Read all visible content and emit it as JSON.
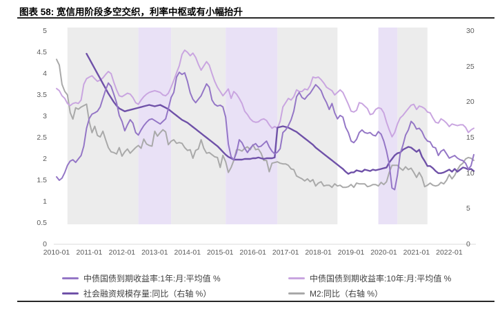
{
  "header": {
    "title": "图表 58: 宽信用阶段多空交织，利率中枢或有小幅抬升"
  },
  "legend": {
    "items": [
      {
        "label": "中债国债到期收益率:1年:月:平均值 %",
        "color": "#9476c6"
      },
      {
        "label": "中债国债到期收益率:10年:月:平均值 %",
        "color": "#c9a5e0"
      },
      {
        "label": "社会融资规模存量:同比（右轴 %）",
        "color": "#6f51a8"
      },
      {
        "label": "M2:同比（右轴 %）",
        "color": "#a9a9a9"
      }
    ]
  },
  "chart_data": {
    "type": "line",
    "title": "图表 58: 宽信用阶段多空交织，利率中枢或有小幅抬升",
    "x_start": "2010-01",
    "x_end": "2022-10",
    "months": 154,
    "grid_color": "#d9d9d9",
    "left_axis": {
      "min": 0,
      "max": 5,
      "ticks": [
        "0",
        "0.5",
        "1",
        "1.5",
        "2",
        "2.5",
        "3",
        "3.5",
        "4",
        "4.5",
        "5"
      ]
    },
    "right_axis": {
      "min": 0,
      "max": 30,
      "ticks": [
        "0",
        "5",
        "10",
        "15",
        "20",
        "25",
        "30"
      ]
    },
    "x_axis": {
      "tick_labels": [
        "2010-01",
        "2011-01",
        "2012-01",
        "2013-01",
        "2014-01",
        "2015-01",
        "2016-01",
        "2017-01",
        "2018-01",
        "2019-01",
        "2020-01",
        "2021-01",
        "2022-01"
      ],
      "tick_month_indices": [
        0,
        12,
        24,
        36,
        48,
        60,
        72,
        84,
        96,
        108,
        120,
        132,
        144
      ]
    },
    "band_colors": {
      "gray": "#ececec",
      "purple": "#e9e1f6"
    },
    "bands": [
      {
        "kind": "gray",
        "from": 4,
        "to": 30
      },
      {
        "kind": "purple",
        "from": 30,
        "to": 42
      },
      {
        "kind": "gray",
        "from": 42,
        "to": 62
      },
      {
        "kind": "purple",
        "from": 62,
        "to": 81
      },
      {
        "kind": "gray",
        "from": 81,
        "to": 103
      },
      {
        "kind": "purple",
        "from": 118,
        "to": 125
      },
      {
        "kind": "gray",
        "from": 125,
        "to": 136
      }
    ],
    "series": [
      {
        "name": "M2:同比（右轴 %）",
        "axis": "right",
        "color": "#a9a9a9",
        "width": 2,
        "values": [
          26.0,
          25.2,
          22.5,
          21.5,
          21.0,
          18.5,
          17.6,
          19.2,
          19.0,
          19.3,
          19.5,
          19.7,
          17.2,
          15.7,
          16.6,
          15.3,
          15.1,
          15.9,
          14.7,
          13.6,
          13.0,
          12.9,
          12.7,
          13.6,
          12.4,
          13.0,
          13.4,
          12.8,
          13.2,
          13.6,
          13.9,
          13.5,
          14.8,
          14.1,
          13.9,
          13.8,
          15.9,
          15.2,
          15.7,
          16.1,
          15.8,
          14.0,
          14.5,
          14.7,
          14.2,
          14.3,
          14.2,
          13.6,
          13.2,
          13.3,
          12.1,
          13.2,
          13.4,
          14.7,
          13.5,
          12.8,
          12.9,
          12.6,
          12.3,
          12.2,
          10.8,
          12.5,
          11.6,
          10.1,
          10.8,
          11.8,
          13.3,
          13.3,
          13.1,
          13.5,
          13.7,
          13.3,
          14.0,
          13.3,
          13.4,
          12.8,
          11.8,
          11.8,
          10.2,
          11.4,
          11.5,
          11.6,
          11.4,
          11.3,
          11.3,
          11.1,
          10.6,
          10.5,
          9.6,
          9.4,
          9.2,
          8.9,
          9.2,
          8.8,
          9.1,
          8.2,
          8.6,
          8.8,
          8.2,
          8.3,
          8.3,
          8.0,
          8.5,
          8.2,
          8.3,
          8.0,
          8.0,
          8.1,
          8.4,
          8.0,
          8.6,
          8.5,
          8.5,
          8.5,
          8.1,
          8.2,
          8.4,
          8.4,
          8.2,
          8.7,
          8.4,
          8.8,
          10.1,
          11.1,
          11.1,
          11.1,
          10.7,
          10.4,
          10.9,
          10.5,
          10.7,
          10.1,
          9.4,
          10.1,
          9.4,
          8.1,
          8.3,
          8.6,
          8.3,
          8.2,
          8.3,
          8.7,
          8.5,
          9.0,
          9.8,
          9.2,
          9.7,
          10.5,
          11.1,
          11.4,
          12.0,
          12.2,
          12.1,
          11.8
        ]
      },
      {
        "name": "中债国债到期收益率:10年:月:平均值 %",
        "axis": "left",
        "color": "#c9a5e0",
        "width": 2,
        "values": [
          3.65,
          3.6,
          3.48,
          3.42,
          3.3,
          3.25,
          3.3,
          3.32,
          3.3,
          3.38,
          3.75,
          3.88,
          3.92,
          3.95,
          3.88,
          3.82,
          3.85,
          3.9,
          3.98,
          4.05,
          4.0,
          3.8,
          3.62,
          3.48,
          3.46,
          3.5,
          3.54,
          3.52,
          3.44,
          3.32,
          3.28,
          3.38,
          3.46,
          3.52,
          3.56,
          3.58,
          3.6,
          3.58,
          3.56,
          3.5,
          3.48,
          3.54,
          3.68,
          3.84,
          4.02,
          4.18,
          4.45,
          4.55,
          4.5,
          4.42,
          4.48,
          4.38,
          4.22,
          4.08,
          4.18,
          4.28,
          4.2,
          4.0,
          3.82,
          3.68,
          3.58,
          3.48,
          3.56,
          3.64,
          3.42,
          3.58,
          3.52,
          3.42,
          3.3,
          3.12,
          3.04,
          2.94,
          2.88,
          2.86,
          2.87,
          2.92,
          2.94,
          2.9,
          2.8,
          2.72,
          2.76,
          2.72,
          2.88,
          3.22,
          3.32,
          3.42,
          3.38,
          3.46,
          3.62,
          3.58,
          3.58,
          3.64,
          3.62,
          3.72,
          3.92,
          3.9,
          3.92,
          3.86,
          3.78,
          3.68,
          3.64,
          3.6,
          3.5,
          3.56,
          3.62,
          3.56,
          3.42,
          3.28,
          3.12,
          3.1,
          3.14,
          3.32,
          3.3,
          3.24,
          3.18,
          3.04,
          3.06,
          3.16,
          3.2,
          3.18,
          3.08,
          2.86,
          2.68,
          2.52,
          2.62,
          2.82,
          2.96,
          3.02,
          3.1,
          3.18,
          3.26,
          3.28,
          3.16,
          3.24,
          3.22,
          3.18,
          3.1,
          3.08,
          2.96,
          2.86,
          2.84,
          2.94,
          2.9,
          2.84,
          2.76,
          2.82,
          2.8,
          2.78,
          2.8,
          2.8,
          2.74,
          2.62,
          2.68,
          2.72
        ]
      },
      {
        "name": "社会融资规模存量:同比（右轴 %）",
        "axis": "right",
        "color": "#6f51a8",
        "width": 2.4,
        "values": [
          null,
          null,
          null,
          null,
          null,
          null,
          null,
          null,
          null,
          null,
          null,
          26.8,
          26.1,
          25.4,
          24.7,
          24.0,
          23.3,
          22.6,
          21.9,
          21.2,
          20.6,
          20.0,
          19.5,
          19.1,
          18.9,
          18.7,
          18.8,
          18.9,
          19.0,
          19.1,
          19.2,
          19.3,
          19.4,
          19.5,
          19.6,
          19.5,
          19.4,
          19.5,
          19.6,
          19.4,
          19.2,
          19.0,
          18.7,
          18.4,
          18.1,
          17.8,
          17.5,
          17.3,
          17.1,
          16.8,
          16.5,
          16.2,
          15.9,
          15.6,
          15.3,
          15.0,
          14.7,
          14.4,
          14.1,
          13.8,
          13.4,
          13.0,
          12.6,
          12.3,
          12.1,
          11.9,
          11.9,
          11.9,
          11.9,
          12.0,
          12.0,
          12.0,
          12.1,
          12.1,
          12.2,
          12.1,
          12.0,
          12.1,
          12.1,
          12.1,
          12.2,
          16.4,
          16.5,
          16.6,
          16.5,
          16.4,
          16.2,
          16.0,
          15.8,
          15.5,
          15.2,
          14.9,
          14.6,
          14.3,
          14.0,
          13.6,
          13.3,
          13.0,
          12.7,
          12.4,
          12.1,
          11.8,
          11.5,
          11.2,
          10.9,
          10.6,
          10.2,
          9.9,
          10.1,
          10.1,
          10.4,
          10.3,
          10.2,
          10.5,
          10.4,
          10.3,
          10.5,
          10.4,
          10.5,
          10.6,
          10.7,
          10.8,
          11.5,
          12.0,
          12.5,
          12.8,
          12.9,
          13.3,
          13.5,
          13.7,
          13.6,
          13.3,
          13.0,
          13.3,
          12.3,
          11.7,
          11.0,
          11.0,
          10.7,
          10.3,
          10.0,
          10.0,
          10.1,
          10.3,
          10.5,
          10.2,
          10.6,
          10.2,
          10.5,
          10.8,
          10.7,
          10.5,
          10.6,
          10.3
        ]
      },
      {
        "name": "中债国债到期收益率:1年:月:平均值 %",
        "axis": "left",
        "color": "#9476c6",
        "width": 2,
        "values": [
          1.58,
          1.5,
          1.55,
          1.68,
          1.85,
          1.95,
          1.98,
          1.92,
          2.0,
          2.08,
          2.3,
          2.72,
          2.95,
          3.05,
          3.08,
          3.12,
          3.22,
          3.42,
          3.62,
          3.78,
          3.7,
          3.52,
          3.32,
          3.02,
          2.88,
          2.66,
          2.8,
          2.92,
          2.84,
          2.62,
          2.56,
          2.68,
          2.78,
          2.86,
          2.92,
          2.94,
          2.9,
          2.86,
          2.82,
          2.88,
          2.94,
          3.18,
          3.44,
          3.56,
          3.92,
          4.03,
          3.98,
          4.02,
          3.82,
          3.55,
          3.4,
          3.32,
          3.4,
          3.48,
          3.62,
          3.76,
          3.68,
          3.38,
          3.28,
          3.24,
          3.26,
          3.22,
          2.98,
          2.35,
          2.05,
          1.98,
          2.15,
          2.45,
          2.38,
          2.25,
          2.15,
          2.25,
          2.32,
          2.36,
          2.28,
          2.3,
          2.36,
          2.42,
          2.28,
          2.18,
          2.12,
          2.16,
          2.24,
          2.62,
          2.68,
          2.78,
          2.92,
          3.12,
          3.46,
          3.56,
          3.44,
          3.4,
          3.48,
          3.54,
          3.64,
          3.74,
          3.68,
          3.6,
          3.44,
          3.32,
          3.16,
          3.3,
          3.08,
          2.94,
          3.02,
          2.98,
          2.74,
          2.62,
          2.42,
          2.38,
          2.46,
          2.62,
          2.68,
          2.62,
          2.6,
          2.62,
          2.56,
          2.54,
          2.64,
          2.58,
          2.42,
          2.18,
          1.88,
          1.32,
          1.28,
          1.62,
          2.12,
          2.32,
          2.56,
          2.68,
          2.88,
          2.82,
          2.7,
          2.72,
          2.64,
          2.5,
          2.42,
          2.4,
          2.28,
          2.26,
          2.08,
          2.18,
          2.22,
          2.12,
          2.02,
          2.05,
          2.08,
          2.02,
          1.98,
          1.96,
          1.9,
          1.76,
          1.84,
          2.1
        ]
      }
    ]
  }
}
